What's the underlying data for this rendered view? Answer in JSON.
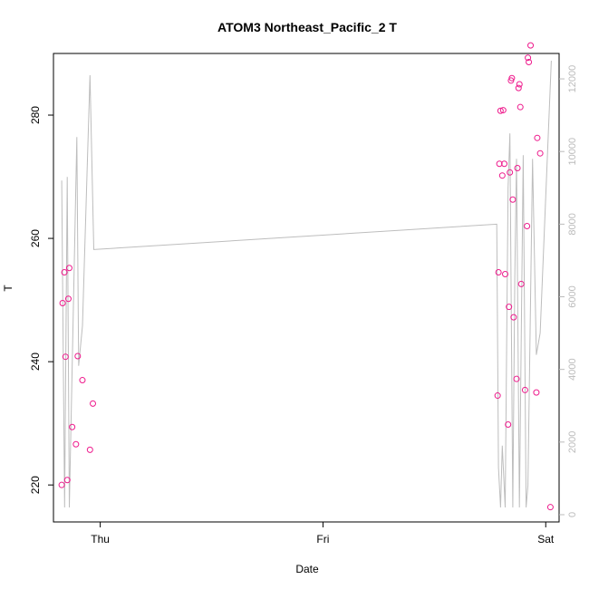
{
  "chart_data": {
    "type": "scatter",
    "title": "ATOM3 Northeast_Pacific_2 T",
    "xlabel": "Date",
    "ylabel": "T",
    "x_ticks": [
      {
        "value": 0,
        "label": "Thu"
      },
      {
        "value": 1,
        "label": "Fri"
      },
      {
        "value": 2,
        "label": "Sat"
      }
    ],
    "xlim": [
      -0.21,
      2.06
    ],
    "ylim": [
      214,
      290
    ],
    "y_ticks": [
      220,
      240,
      260,
      280
    ],
    "y2_ticks": [
      0,
      2000,
      4000,
      6000,
      8000,
      10000,
      12000
    ],
    "y2lim": [
      -200,
      12700
    ],
    "grid": false,
    "series": [
      {
        "type": "scatter",
        "color": "#ee1a8c",
        "points": [
          {
            "x": -0.173,
            "y": 220
          },
          {
            "x": -0.169,
            "y": 249.5
          },
          {
            "x": -0.161,
            "y": 254.5
          },
          {
            "x": -0.156,
            "y": 240.8
          },
          {
            "x": -0.148,
            "y": 220.8
          },
          {
            "x": -0.143,
            "y": 250.2
          },
          {
            "x": -0.139,
            "y": 255.2
          },
          {
            "x": -0.126,
            "y": 229.4
          },
          {
            "x": -0.109,
            "y": 226.6
          },
          {
            "x": -0.101,
            "y": 240.9
          },
          {
            "x": -0.08,
            "y": 237.0
          },
          {
            "x": -0.046,
            "y": 225.7
          },
          {
            "x": -0.033,
            "y": 233.2
          },
          {
            "x": 1.784,
            "y": 234.5
          },
          {
            "x": 1.788,
            "y": 254.5
          },
          {
            "x": 1.792,
            "y": 272.1
          },
          {
            "x": 1.797,
            "y": 280.7
          },
          {
            "x": 1.805,
            "y": 270.2
          },
          {
            "x": 1.809,
            "y": 280.8
          },
          {
            "x": 1.814,
            "y": 272.1
          },
          {
            "x": 1.818,
            "y": 254.2
          },
          {
            "x": 1.831,
            "y": 229.8
          },
          {
            "x": 1.835,
            "y": 248.9
          },
          {
            "x": 1.839,
            "y": 270.7
          },
          {
            "x": 1.844,
            "y": 285.6
          },
          {
            "x": 1.848,
            "y": 286.0
          },
          {
            "x": 1.852,
            "y": 266.3
          },
          {
            "x": 1.856,
            "y": 247.2
          },
          {
            "x": 1.869,
            "y": 237.2
          },
          {
            "x": 1.873,
            "y": 271.4
          },
          {
            "x": 1.878,
            "y": 284.4
          },
          {
            "x": 1.882,
            "y": 285.0
          },
          {
            "x": 1.886,
            "y": 281.3
          },
          {
            "x": 1.89,
            "y": 252.6
          },
          {
            "x": 1.907,
            "y": 235.4
          },
          {
            "x": 1.916,
            "y": 262.0
          },
          {
            "x": 1.92,
            "y": 289.3
          },
          {
            "x": 1.924,
            "y": 288.6
          },
          {
            "x": 1.932,
            "y": 291.3
          },
          {
            "x": 1.958,
            "y": 235.0
          },
          {
            "x": 1.962,
            "y": 276.3
          },
          {
            "x": 1.975,
            "y": 273.8
          },
          {
            "x": 2.021,
            "y": 216.4
          }
        ]
      },
      {
        "type": "line",
        "axis": "right",
        "color": "#bdbdbd",
        "points": [
          {
            "x": -0.173,
            "y": 9200
          },
          {
            "x": -0.16,
            "y": 200
          },
          {
            "x": -0.148,
            "y": 9300
          },
          {
            "x": -0.139,
            "y": 200
          },
          {
            "x": -0.105,
            "y": 10400
          },
          {
            "x": -0.097,
            "y": 4100
          },
          {
            "x": -0.08,
            "y": 5200
          },
          {
            "x": -0.046,
            "y": 12100
          },
          {
            "x": -0.029,
            "y": 7300
          },
          {
            "x": 1.78,
            "y": 8000
          },
          {
            "x": 1.788,
            "y": 1300
          },
          {
            "x": 1.797,
            "y": 200
          },
          {
            "x": 1.805,
            "y": 1900
          },
          {
            "x": 1.818,
            "y": 200
          },
          {
            "x": 1.831,
            "y": 9000
          },
          {
            "x": 1.839,
            "y": 10500
          },
          {
            "x": 1.852,
            "y": 200
          },
          {
            "x": 1.861,
            "y": 6500
          },
          {
            "x": 1.869,
            "y": 9800
          },
          {
            "x": 1.882,
            "y": 200
          },
          {
            "x": 1.899,
            "y": 9900
          },
          {
            "x": 1.912,
            "y": 200
          },
          {
            "x": 1.92,
            "y": 800
          },
          {
            "x": 1.941,
            "y": 9800
          },
          {
            "x": 1.958,
            "y": 4400
          },
          {
            "x": 1.975,
            "y": 5000
          },
          {
            "x": 2.025,
            "y": 12500
          }
        ]
      }
    ]
  }
}
